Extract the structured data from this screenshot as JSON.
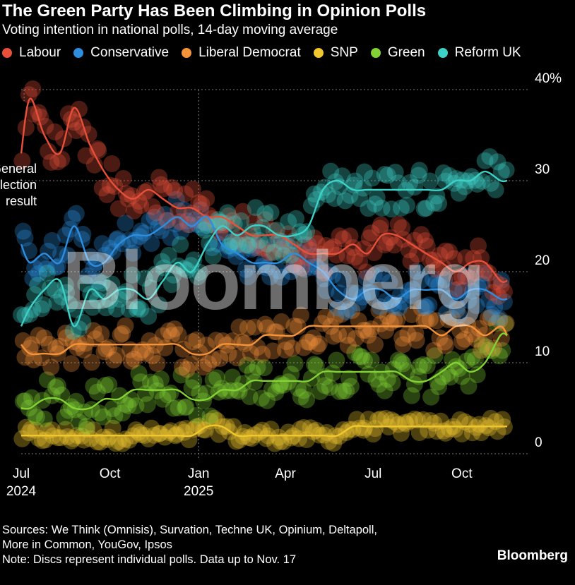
{
  "chart_data": {
    "type": "scatter",
    "title": "The Green Party Has Been Climbing in Opinion Polls",
    "subtitle": "Voting intention in national polls, 14-day moving average",
    "ylabel": "",
    "xlabel": "",
    "ylim": [
      0,
      40
    ],
    "xlim": [
      "2024-07-01",
      "2025-11-17"
    ],
    "y_ticks": [
      {
        "value": 0,
        "label": "0"
      },
      {
        "value": 10,
        "label": "10"
      },
      {
        "value": 20,
        "label": "20"
      },
      {
        "value": 30,
        "label": "30"
      },
      {
        "value": 40,
        "label": "40%"
      }
    ],
    "x_ticks": [
      {
        "date": "2024-07-01",
        "label": "Jul",
        "sublabel": "2024"
      },
      {
        "date": "2024-10-01",
        "label": "Oct",
        "sublabel": ""
      },
      {
        "date": "2025-01-01",
        "label": "Jan",
        "sublabel": "2025"
      },
      {
        "date": "2025-04-01",
        "label": "Apr",
        "sublabel": ""
      },
      {
        "date": "2025-07-01",
        "label": "Jul",
        "sublabel": ""
      },
      {
        "date": "2025-10-01",
        "label": "Oct",
        "sublabel": ""
      }
    ],
    "annotation": {
      "lines": [
        "General",
        "election",
        "result"
      ],
      "date": "2024-07-04"
    },
    "reference_line_date": "2025-01-01",
    "grid": true,
    "legend_position": "top",
    "series": [
      {
        "name": "Labour",
        "color": "#e8503a",
        "x": [
          "2024-07-01",
          "2024-07-10",
          "2024-07-25",
          "2024-08-10",
          "2024-08-25",
          "2024-09-10",
          "2024-09-25",
          "2024-10-10",
          "2024-10-25",
          "2024-11-10",
          "2024-11-25",
          "2024-12-10",
          "2024-12-25",
          "2025-01-10",
          "2025-01-25",
          "2025-02-10",
          "2025-02-25",
          "2025-03-10",
          "2025-03-25",
          "2025-04-10",
          "2025-04-25",
          "2025-05-10",
          "2025-05-25",
          "2025-06-10",
          "2025-06-25",
          "2025-07-10",
          "2025-07-25",
          "2025-08-10",
          "2025-08-25",
          "2025-09-10",
          "2025-09-25",
          "2025-10-10",
          "2025-10-25",
          "2025-11-10",
          "2025-11-17"
        ],
        "y": [
          33,
          39,
          35,
          33,
          38,
          34,
          31,
          29,
          28,
          29,
          28,
          27,
          27,
          26,
          26,
          25,
          24,
          24,
          24,
          23,
          22,
          22,
          22,
          23,
          22,
          24,
          24,
          23,
          22,
          21,
          20,
          21,
          21,
          19,
          19
        ]
      },
      {
        "name": "Conservative",
        "color": "#2d8ee0",
        "x": [
          "2024-07-01",
          "2024-07-10",
          "2024-07-25",
          "2024-08-10",
          "2024-08-25",
          "2024-09-10",
          "2024-09-25",
          "2024-10-10",
          "2024-10-25",
          "2024-11-10",
          "2024-11-25",
          "2024-12-10",
          "2024-12-25",
          "2025-01-10",
          "2025-01-25",
          "2025-02-10",
          "2025-02-25",
          "2025-03-10",
          "2025-03-25",
          "2025-04-10",
          "2025-04-25",
          "2025-05-10",
          "2025-05-25",
          "2025-06-10",
          "2025-06-25",
          "2025-07-10",
          "2025-07-25",
          "2025-08-10",
          "2025-08-25",
          "2025-09-10",
          "2025-09-25",
          "2025-10-10",
          "2025-10-25",
          "2025-11-10",
          "2025-11-17"
        ],
        "y": [
          23,
          21,
          22,
          21,
          25,
          21,
          21,
          23,
          24,
          24,
          25,
          26,
          25,
          26,
          23,
          22,
          21,
          21,
          21,
          22,
          21,
          20,
          18,
          17,
          18,
          18,
          17,
          18,
          18,
          18,
          17,
          18,
          18,
          17,
          17
        ]
      },
      {
        "name": "Liberal Democrat",
        "color": "#f5933b",
        "x": [
          "2024-07-01",
          "2024-07-10",
          "2024-07-25",
          "2024-08-10",
          "2024-08-25",
          "2024-09-10",
          "2024-09-25",
          "2024-10-10",
          "2024-10-25",
          "2024-11-10",
          "2024-11-25",
          "2024-12-10",
          "2024-12-25",
          "2025-01-10",
          "2025-01-25",
          "2025-02-10",
          "2025-02-25",
          "2025-03-10",
          "2025-03-25",
          "2025-04-10",
          "2025-04-25",
          "2025-05-10",
          "2025-05-25",
          "2025-06-10",
          "2025-06-25",
          "2025-07-10",
          "2025-07-25",
          "2025-08-10",
          "2025-08-25",
          "2025-09-10",
          "2025-09-25",
          "2025-10-10",
          "2025-10-25",
          "2025-11-10",
          "2025-11-17"
        ],
        "y": [
          12,
          11,
          11,
          11,
          12,
          12,
          12,
          12,
          12,
          12,
          12,
          12,
          11,
          11,
          12,
          12,
          12,
          13,
          13,
          13,
          14,
          14,
          14,
          14,
          14,
          14,
          14,
          14,
          14,
          13,
          14,
          14,
          13,
          14,
          13
        ]
      },
      {
        "name": "SNP",
        "color": "#f1c72f",
        "x": [
          "2024-07-01",
          "2024-07-10",
          "2024-07-25",
          "2024-08-10",
          "2024-08-25",
          "2024-09-10",
          "2024-09-25",
          "2024-10-10",
          "2024-10-25",
          "2024-11-10",
          "2024-11-25",
          "2024-12-10",
          "2024-12-25",
          "2025-01-10",
          "2025-01-25",
          "2025-02-10",
          "2025-02-25",
          "2025-03-10",
          "2025-03-25",
          "2025-04-10",
          "2025-04-25",
          "2025-05-10",
          "2025-05-25",
          "2025-06-10",
          "2025-06-25",
          "2025-07-10",
          "2025-07-25",
          "2025-08-10",
          "2025-08-25",
          "2025-09-10",
          "2025-09-25",
          "2025-10-10",
          "2025-10-25",
          "2025-11-10",
          "2025-11-17"
        ],
        "y": [
          2,
          2,
          2,
          2,
          2,
          2,
          2,
          2,
          2,
          2,
          2,
          2,
          2,
          3,
          3,
          2,
          2,
          2,
          2,
          2,
          2,
          2,
          2,
          3,
          3,
          3,
          3,
          3,
          3,
          3,
          3,
          3,
          3,
          3,
          3
        ]
      },
      {
        "name": "Green",
        "color": "#84d334",
        "x": [
          "2024-07-01",
          "2024-07-10",
          "2024-07-25",
          "2024-08-10",
          "2024-08-25",
          "2024-09-10",
          "2024-09-25",
          "2024-10-10",
          "2024-10-25",
          "2024-11-10",
          "2024-11-25",
          "2024-12-10",
          "2024-12-25",
          "2025-01-10",
          "2025-01-25",
          "2025-02-10",
          "2025-02-25",
          "2025-03-10",
          "2025-03-25",
          "2025-04-10",
          "2025-04-25",
          "2025-05-10",
          "2025-05-25",
          "2025-06-10",
          "2025-06-25",
          "2025-07-10",
          "2025-07-25",
          "2025-08-10",
          "2025-08-25",
          "2025-09-10",
          "2025-09-25",
          "2025-10-10",
          "2025-10-25",
          "2025-11-10",
          "2025-11-17"
        ],
        "y": [
          5,
          5,
          6,
          6,
          5,
          5,
          6,
          6,
          7,
          7,
          7,
          7,
          6,
          6,
          7,
          7,
          8,
          8,
          8,
          8,
          8,
          9,
          9,
          9,
          9,
          9,
          9,
          8,
          8,
          9,
          10,
          9,
          10,
          13,
          13
        ]
      },
      {
        "name": "Reform UK",
        "color": "#3ed1c7",
        "x": [
          "2024-07-01",
          "2024-07-10",
          "2024-07-25",
          "2024-08-10",
          "2024-08-25",
          "2024-09-10",
          "2024-09-25",
          "2024-10-10",
          "2024-10-25",
          "2024-11-10",
          "2024-11-25",
          "2024-12-10",
          "2024-12-25",
          "2025-01-10",
          "2025-01-25",
          "2025-02-10",
          "2025-02-25",
          "2025-03-10",
          "2025-03-25",
          "2025-04-10",
          "2025-04-25",
          "2025-05-10",
          "2025-05-25",
          "2025-06-10",
          "2025-06-25",
          "2025-07-10",
          "2025-07-25",
          "2025-08-10",
          "2025-08-25",
          "2025-09-10",
          "2025-09-25",
          "2025-10-10",
          "2025-10-25",
          "2025-11-10",
          "2025-11-17"
        ],
        "y": [
          14,
          16,
          18,
          19,
          14,
          18,
          17,
          18,
          18,
          17,
          19,
          21,
          20,
          23,
          25,
          24,
          25,
          25,
          24,
          24,
          25,
          29,
          30,
          29,
          29,
          29,
          29,
          29,
          29,
          29,
          30,
          30,
          31,
          30,
          30
        ]
      }
    ]
  },
  "footer": {
    "sources_line1": "Sources: We Think (Omnisis), Survation, Techne UK, Opinium, Deltapoll,",
    "sources_line2": "More in Common, YouGov, Ipsos",
    "note": "Note: Discs represent individual polls. Data up to Nov. 17"
  },
  "brand": {
    "logo": "Bloomberg",
    "watermark": "Bloomberg"
  }
}
